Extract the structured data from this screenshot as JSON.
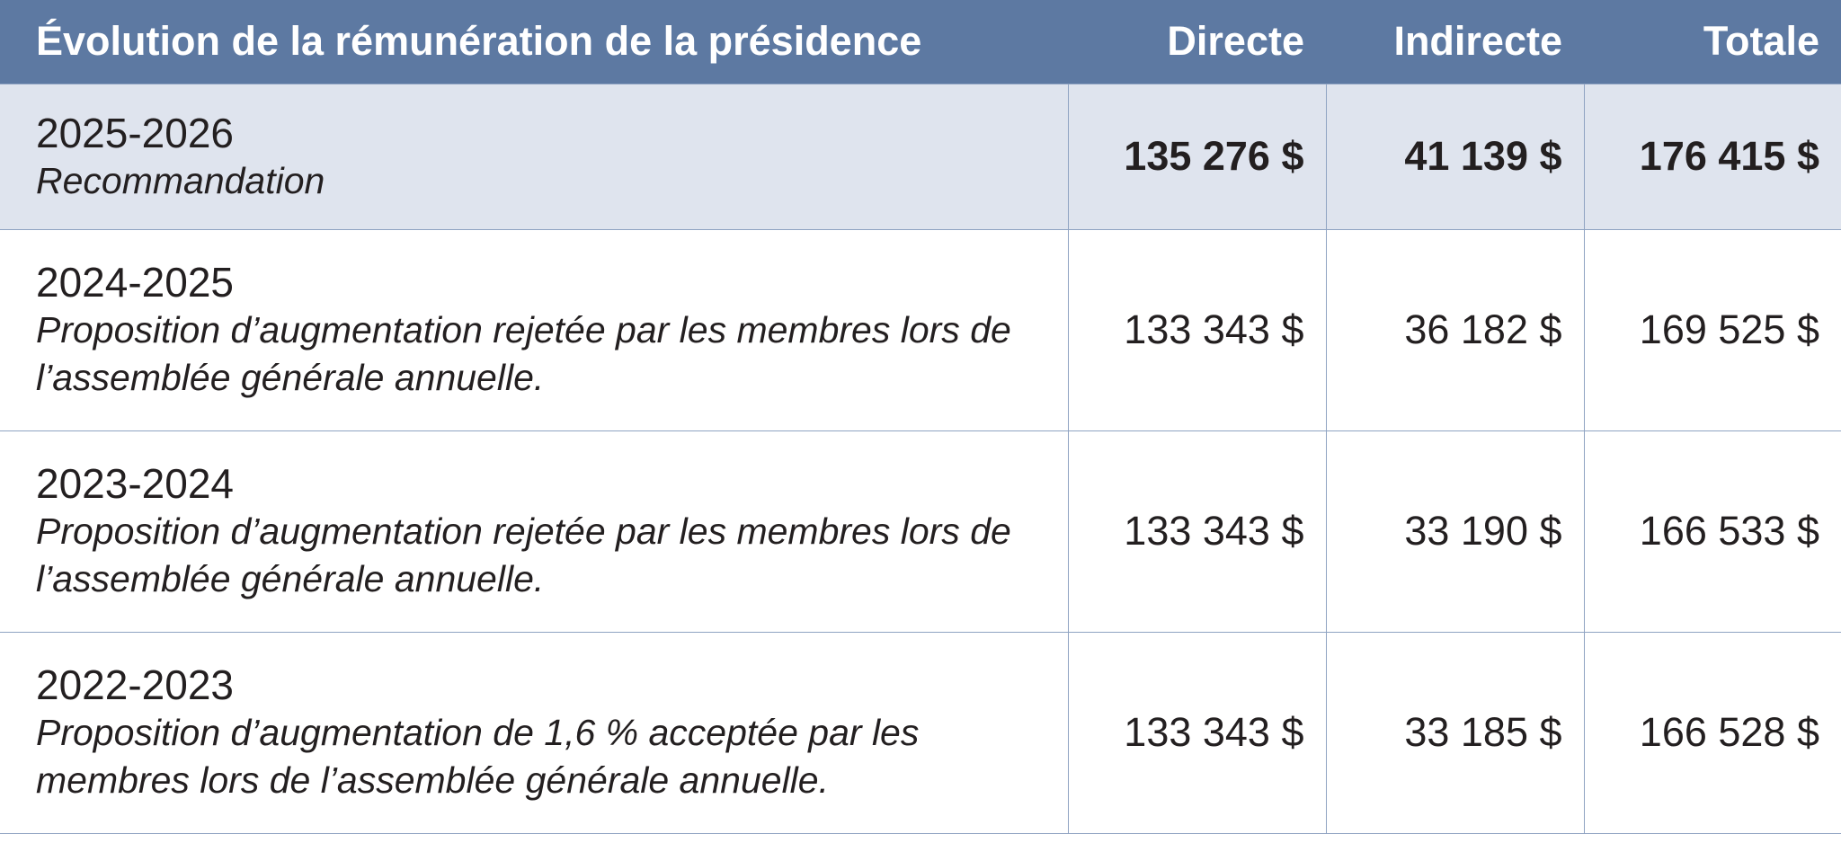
{
  "header": {
    "title": "Évolution de la rémunération de la présidence",
    "col_direct": "Directe",
    "col_indirect": "Indirecte",
    "col_total": "Totale"
  },
  "rows": [
    {
      "year": "2025-2026",
      "note": "Recommandation",
      "direct": "135 276 $",
      "indirect": "41 139 $",
      "total": "176 415 $"
    },
    {
      "year": "2024-2025",
      "note": "Proposition d’augmentation rejetée par les membres lors de l’assemblée générale annuelle.",
      "direct": "133 343 $",
      "indirect": "36 182 $",
      "total": "169 525 $"
    },
    {
      "year": "2023-2024",
      "note": "Proposition d’augmentation rejetée par les membres lors de l’assemblée générale annuelle.",
      "direct": "133 343 $",
      "indirect": "33 190 $",
      "total": "166 533 $"
    },
    {
      "year": "2022-2023",
      "note": "Proposition d’augmentation de 1,6 % acceptée par les membres lors de l’assemblée générale annuelle.",
      "direct": "133 343 $",
      "indirect": "33 185 $",
      "total": "166 528 $"
    }
  ],
  "colors": {
    "header_bg": "#5d79a2",
    "highlight_row_bg": "#dfe4ee",
    "border": "#8fa3c2",
    "text": "#231f20"
  }
}
